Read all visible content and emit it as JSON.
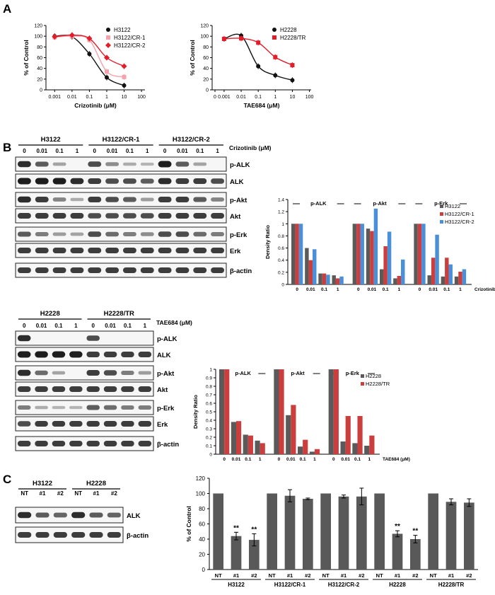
{
  "panels": {
    "a": "A",
    "b": "B",
    "c": "C"
  },
  "dose_curves": [
    {
      "xlabel": "Crizotinib (μM)",
      "ylabel": "% of Control",
      "xticks": [
        "0.001",
        "0.01",
        "0.1",
        "1",
        "10",
        "100"
      ],
      "yticks": [
        "0",
        "20",
        "40",
        "60",
        "80",
        "100",
        "120"
      ],
      "ylim": [
        0,
        120
      ],
      "legend": [
        "H3122",
        "H3122/CR-1",
        "H3122/CR-2"
      ],
      "series_colors": [
        "#111111",
        "#f4a3ac",
        "#e11d2a"
      ],
      "series_markers": [
        "circle",
        "square",
        "diamond"
      ]
    },
    {
      "xlabel": "TAE684 (μM)",
      "ylabel": "% of Control",
      "xticks": [
        "0",
        "0.001",
        "0.01",
        "0.1",
        "1",
        "10",
        "100"
      ],
      "yticks": [
        "0",
        "20",
        "40",
        "60",
        "80",
        "100",
        "120"
      ],
      "ylim": [
        0,
        120
      ],
      "legend": [
        "H2228",
        "H2228/TR"
      ],
      "series_colors": [
        "#111111",
        "#e11d2a"
      ],
      "series_markers": [
        "circle",
        "square"
      ]
    }
  ],
  "blots": [
    {
      "groups": [
        "H3122",
        "H3122/CR-1",
        "H3122/CR-2"
      ],
      "lanes": [
        "0",
        "0.01",
        "0.1",
        "1",
        "0",
        "0.01",
        "0.1",
        "1",
        "0",
        "0.01",
        "0.1",
        "1"
      ],
      "drug": "Crizotinib (μM)",
      "rows": [
        "p-ALK",
        "ALK",
        "p-Akt",
        "Akt",
        "p-Erk",
        "Erk",
        "β-actin"
      ]
    },
    {
      "groups": [
        "H2228",
        "H2228/TR"
      ],
      "lanes": [
        "0",
        "0.01",
        "0.1",
        "1",
        "0",
        "0.01",
        "0.1",
        "1"
      ],
      "drug": "TAE684 (μM)",
      "rows": [
        "p-ALK",
        "ALK",
        "p-Akt",
        "Akt",
        "p-Erk",
        "Erk",
        "β-actin"
      ]
    },
    {
      "groups": [
        "H3122",
        "H2228"
      ],
      "lanes": [
        "NT",
        "#1",
        "#2",
        "NT",
        "#1",
        "#2"
      ],
      "rows": [
        "ALK",
        "β-actin"
      ]
    }
  ],
  "chart_data": [
    {
      "type": "line",
      "xscale": "log",
      "x": [
        0.001,
        0.01,
        0.1,
        1,
        10
      ],
      "xlabel": "Crizotinib (μM)",
      "ylabel": "% of Control",
      "ylim": [
        0,
        120
      ],
      "legend_position": "top-right",
      "series": [
        {
          "name": "H3122",
          "values": [
            100,
            99,
            67,
            23,
            8
          ]
        },
        {
          "name": "H3122/CR-1",
          "values": [
            98,
            100,
            93,
            34,
            24
          ]
        },
        {
          "name": "H3122/CR-2",
          "values": [
            99,
            102,
            96,
            60,
            44
          ]
        }
      ]
    },
    {
      "type": "line",
      "xscale": "log",
      "x": [
        0.001,
        0.01,
        0.1,
        1,
        10
      ],
      "xlabel": "TAE684 (μM)",
      "ylabel": "% of Control",
      "ylim": [
        0,
        120
      ],
      "legend_position": "top-right",
      "series": [
        {
          "name": "H2228",
          "values": [
            95,
            101,
            44,
            27,
            18
          ]
        },
        {
          "name": "H2228/TR",
          "values": [
            95,
            96,
            88,
            61,
            46
          ]
        }
      ]
    },
    {
      "type": "bar",
      "ylabel": "Density Ratio",
      "ylim": [
        0,
        1.4
      ],
      "yticks": [
        "0",
        "0.2",
        "0.4",
        "0.6",
        "0.8",
        "1",
        "1.2",
        "1.4"
      ],
      "xlabel": "Crizotinib (μM)",
      "groups": [
        "p-ALK",
        "p-Akt",
        "p-Erk"
      ],
      "categories": [
        "0",
        "0.01",
        "0.1",
        "1"
      ],
      "series_colors": [
        "#5a5a5a",
        "#cc3d3d",
        "#4a90d9"
      ],
      "series": [
        {
          "name": "H3122",
          "values": [
            [
              1,
              0.6,
              0.18,
              0.15
            ],
            [
              1,
              0.92,
              0.25,
              0.1
            ],
            [
              1,
              0.15,
              0.13,
              0.13
            ]
          ]
        },
        {
          "name": "H3122/CR-1",
          "values": [
            [
              1,
              0.4,
              0.18,
              0.1
            ],
            [
              1,
              0.88,
              0.63,
              0.14
            ],
            [
              1,
              0.44,
              0.44,
              0.21
            ]
          ]
        },
        {
          "name": "H3122/CR-2",
          "values": [
            [
              1,
              0.58,
              0.16,
              0.13
            ],
            [
              1,
              1.25,
              0.87,
              0.41
            ],
            [
              1,
              0.82,
              0.33,
              0.25
            ]
          ]
        }
      ]
    },
    {
      "type": "bar",
      "ylabel": "Density Ratio",
      "ylim": [
        0,
        1.0
      ],
      "yticks": [
        "0",
        "0.1",
        "0.2",
        "0.3",
        "0.4",
        "0.5",
        "0.6",
        "0.7",
        "0.8",
        "0.9",
        "1"
      ],
      "xlabel": "TAE684 (μM)",
      "groups": [
        "p-ALK",
        "p-Akt",
        "p-Erk"
      ],
      "categories": [
        "0",
        "0.01",
        "0.1",
        "1"
      ],
      "series_colors": [
        "#5a5a5a",
        "#cc3d3d"
      ],
      "series": [
        {
          "name": "H2228",
          "values": [
            [
              1,
              0.38,
              0.23,
              0.16
            ],
            [
              1,
              0.46,
              0.09,
              0.03
            ],
            [
              1,
              0.15,
              0.13,
              0.1
            ]
          ]
        },
        {
          "name": "H2228/TR",
          "values": [
            [
              1,
              0.39,
              0.22,
              0.13
            ],
            [
              1,
              0.58,
              0.17,
              0.06
            ],
            [
              1,
              0.45,
              0.45,
              0.22
            ]
          ]
        }
      ]
    },
    {
      "type": "bar",
      "ylabel": "% of Control",
      "ylim": [
        0,
        120
      ],
      "yticks": [
        "0",
        "20",
        "40",
        "60",
        "80",
        "100",
        "120"
      ],
      "bar_color": "#595959",
      "categories": [
        "NT",
        "#1",
        "#2",
        "NT",
        "#1",
        "#2",
        "NT",
        "#1",
        "#2",
        "NT",
        "#1",
        "#2",
        "NT",
        "#1",
        "#2"
      ],
      "groups": [
        "H3122",
        "H3122/CR-1",
        "H3122/CR-2",
        "H2228",
        "H2228/TR"
      ],
      "values": [
        100,
        44,
        39,
        100,
        97,
        93,
        100,
        96,
        96,
        100,
        47,
        40,
        100,
        89,
        88
      ],
      "errors": [
        0,
        5,
        8,
        0,
        8,
        1,
        0,
        2,
        11,
        0,
        4,
        5,
        0,
        4,
        5
      ],
      "annotations": [
        "",
        "**",
        "**",
        "",
        "",
        "",
        "",
        "",
        "",
        "",
        "**",
        "**",
        "",
        "",
        ""
      ]
    }
  ]
}
